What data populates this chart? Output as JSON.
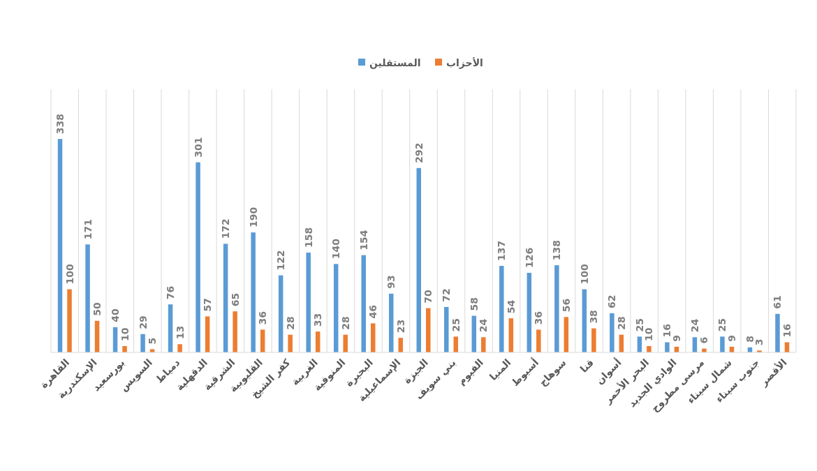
{
  "chart_data": {
    "type": "bar",
    "categories": [
      "القاهرة",
      "الإسكندرية",
      "بورسعيد",
      "السويس",
      "دمياط",
      "الدقهلية",
      "الشرقية",
      "القليوبية",
      "كفر الشيخ",
      "الغربية",
      "المنوفية",
      "البحيرة",
      "الإسماعيلية",
      "الجيزة",
      "بني سويف",
      "الفيوم",
      "المنيا",
      "أسيوط",
      "سوهاج",
      "قنا",
      "أسوان",
      "البحر الأحمر",
      "الوادي الجديد",
      "مرسى مطروح",
      "شمال سيناء",
      "جنوب سيناء",
      "الأقصر"
    ],
    "series": [
      {
        "name": "المستقلين",
        "color": "#5b9bd5",
        "values": [
          338,
          171,
          40,
          29,
          76,
          301,
          172,
          190,
          122,
          158,
          140,
          154,
          93,
          292,
          72,
          58,
          137,
          126,
          138,
          100,
          62,
          25,
          16,
          24,
          25,
          8,
          61
        ]
      },
      {
        "name": "الأحزاب",
        "color": "#ed7d31",
        "values": [
          100,
          50,
          10,
          5,
          13,
          57,
          65,
          36,
          28,
          33,
          28,
          46,
          23,
          70,
          25,
          24,
          54,
          36,
          56,
          38,
          28,
          10,
          9,
          6,
          9,
          3,
          16
        ]
      }
    ],
    "data_labels": true,
    "legend": "top",
    "grid": "x"
  }
}
